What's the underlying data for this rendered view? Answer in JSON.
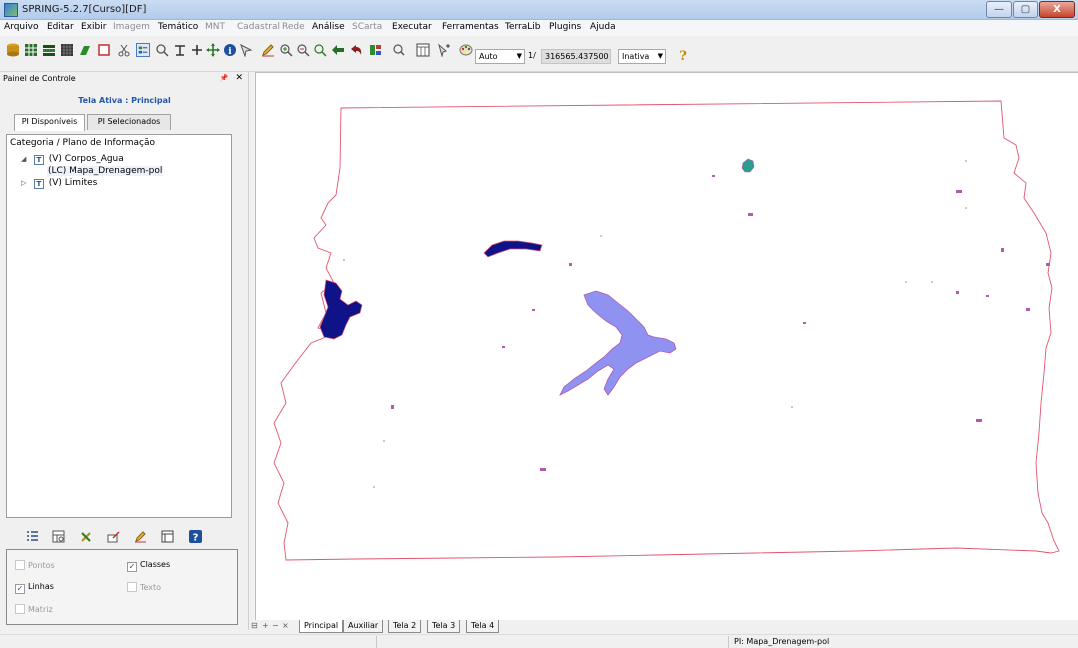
{
  "window": {
    "title": "SPRING-5.2.7[Curso][DF]",
    "minimize_label": "—",
    "maximize_label": "▢",
    "close_label": "X"
  },
  "menu": [
    {
      "label": "Arquivo",
      "enabled": true
    },
    {
      "label": "Editar",
      "enabled": true
    },
    {
      "label": "Exibir",
      "enabled": true
    },
    {
      "label": "Imagem",
      "enabled": false
    },
    {
      "label": "Temático",
      "enabled": true
    },
    {
      "label": "MNT",
      "enabled": false
    },
    {
      "label": "Cadastral",
      "enabled": false
    },
    {
      "label": "Rede",
      "enabled": false
    },
    {
      "label": "Análise",
      "enabled": true
    },
    {
      "label": "SCarta",
      "enabled": false
    },
    {
      "label": "Executar",
      "enabled": true
    },
    {
      "label": "Ferramentas",
      "enabled": true
    },
    {
      "label": "TerraLib",
      "enabled": true
    },
    {
      "label": "Plugins",
      "enabled": true
    },
    {
      "label": "Ajuda",
      "enabled": true
    }
  ],
  "toolbar": {
    "zoom_mode": "Auto",
    "scale_prefix": "1/",
    "scale_value": "316565.437500",
    "state": "Inativa",
    "icons": [
      "database-icon",
      "table-icon",
      "stack-icon",
      "grid-icon",
      "draw-icon",
      "window-icon",
      "cut-icon",
      "legend-icon",
      "zoom-icon",
      "info-cursor-icon",
      "plus-icon",
      "pan-icon",
      "info-icon",
      "select-icon",
      "pencil-icon",
      "zoom-in-icon",
      "zoom-out-icon",
      "zoom-previous-icon",
      "back-arrow-icon",
      "undo-icon",
      "display-icon",
      "zoom-options-icon",
      "layout-icon",
      "cursor-plus-icon",
      "palette-icon",
      "help-icon"
    ]
  },
  "panel": {
    "title": "Painel de Controle",
    "pin_icon": "📌",
    "close_icon": "✕",
    "active_screen": "Tela Ativa : Principal",
    "tabs": [
      "PI Disponíveis",
      "PI Selecionados"
    ],
    "tree_title": "Categoria / Plano de Informação",
    "tree": [
      {
        "toggle": "◢",
        "badge": "T",
        "label": "(V) Corpos_Agua"
      },
      {
        "label": "(LC) Mapa_Drenagem-pol"
      },
      {
        "toggle": "▷",
        "badge": "T",
        "label": "(V) Limites"
      }
    ],
    "options": [
      {
        "label": "Pontos",
        "checked": false,
        "enabled": false
      },
      {
        "label": "Classes",
        "checked": true,
        "enabled": true
      },
      {
        "label": "Linhas",
        "checked": true,
        "enabled": true
      },
      {
        "label": "Texto",
        "checked": false,
        "enabled": false
      },
      {
        "label": "Matriz",
        "checked": false,
        "enabled": false
      }
    ]
  },
  "map": {
    "boundary_color": "#e0556e",
    "dark_water_color": "#0f1387",
    "light_water_color": "#8f92f0",
    "small_feature_color": "#b25ab0"
  },
  "bottom_tabs": [
    "Principal",
    "Auxiliar",
    "Tela 2",
    "Tela 3",
    "Tela 4"
  ],
  "bottom_nav": [
    "⊟",
    "+",
    "−",
    "×"
  ],
  "status": {
    "pi": "PI: Mapa_Drenagem-pol"
  }
}
